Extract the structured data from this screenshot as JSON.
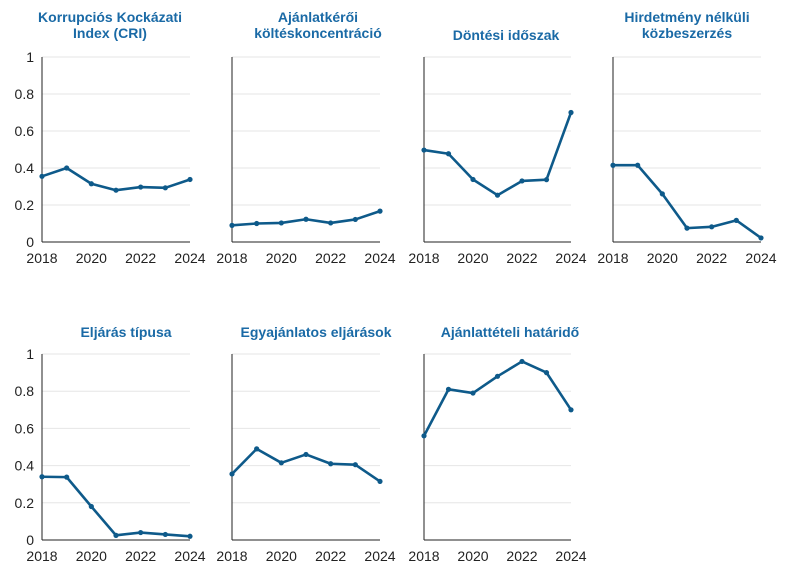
{
  "colors": {
    "line": "#0e5a8a",
    "title": "#1a6aa6",
    "grid": "#e6e6e6",
    "axis": "#222222",
    "tick_text": "#222222"
  },
  "chart_data": [
    {
      "type": "line",
      "title": [
        "Korrupciós Kockázati",
        "Index (CRI)"
      ],
      "x": [
        2018,
        2019,
        2020,
        2021,
        2022,
        2023,
        2024
      ],
      "values": [
        0.355,
        0.4,
        0.315,
        0.28,
        0.297,
        0.293,
        0.338
      ],
      "xticks": [
        "2018",
        "2020",
        "2022",
        "2024"
      ],
      "yticks": [
        "0",
        "0.2",
        "0.4",
        "0.6",
        "0.8",
        "1"
      ],
      "ylim": [
        0,
        1
      ],
      "xlabel": "",
      "ylabel": ""
    },
    {
      "type": "line",
      "title": [
        "Ajánlatkérői",
        "költéskoncentráció"
      ],
      "x": [
        2018,
        2019,
        2020,
        2021,
        2022,
        2023,
        2024
      ],
      "values": [
        0.09,
        0.1,
        0.103,
        0.123,
        0.103,
        0.122,
        0.167
      ],
      "xticks": [
        "2018",
        "2020",
        "2022",
        "2024"
      ],
      "ylim": [
        0,
        1
      ],
      "xlabel": "",
      "ylabel": ""
    },
    {
      "type": "line",
      "title": [
        "Döntési időszak"
      ],
      "x": [
        2018,
        2019,
        2020,
        2021,
        2022,
        2023,
        2024
      ],
      "values": [
        0.497,
        0.477,
        0.338,
        0.253,
        0.33,
        0.337,
        0.7
      ],
      "xticks": [
        "2018",
        "2020",
        "2022",
        "2024"
      ],
      "ylim": [
        0,
        1
      ],
      "xlabel": "",
      "ylabel": ""
    },
    {
      "type": "line",
      "title": [
        "Hirdetmény nélküli",
        "közbeszerzés"
      ],
      "x": [
        2018,
        2019,
        2020,
        2021,
        2022,
        2023,
        2024
      ],
      "values": [
        0.415,
        0.415,
        0.26,
        0.075,
        0.082,
        0.117,
        0.022
      ],
      "xticks": [
        "2018",
        "2020",
        "2022",
        "2024"
      ],
      "ylim": [
        0,
        1
      ],
      "xlabel": "",
      "ylabel": ""
    },
    {
      "type": "line",
      "title": [
        "Eljárás típusa"
      ],
      "x": [
        2018,
        2019,
        2020,
        2021,
        2022,
        2023,
        2024
      ],
      "values": [
        0.34,
        0.338,
        0.18,
        0.025,
        0.04,
        0.03,
        0.02
      ],
      "xticks": [
        "2018",
        "2020",
        "2022",
        "2024"
      ],
      "yticks": [
        "0",
        "0.2",
        "0.4",
        "0.6",
        "0.8",
        "1"
      ],
      "ylim": [
        0,
        1
      ],
      "xlabel": "",
      "ylabel": ""
    },
    {
      "type": "line",
      "title": [
        "Egyajánlatos eljárások"
      ],
      "x": [
        2018,
        2019,
        2020,
        2021,
        2022,
        2023,
        2024
      ],
      "values": [
        0.355,
        0.49,
        0.415,
        0.46,
        0.41,
        0.405,
        0.315
      ],
      "xticks": [
        "2018",
        "2020",
        "2022",
        "2024"
      ],
      "ylim": [
        0,
        1
      ],
      "xlabel": "",
      "ylabel": ""
    },
    {
      "type": "line",
      "title": [
        "Ajánlattételi határidő"
      ],
      "x": [
        2018,
        2019,
        2020,
        2021,
        2022,
        2023,
        2024
      ],
      "values": [
        0.56,
        0.81,
        0.79,
        0.88,
        0.96,
        0.9,
        0.7
      ],
      "xticks": [
        "2018",
        "2020",
        "2022",
        "2024"
      ],
      "ylim": [
        0,
        1
      ],
      "xlabel": "",
      "ylabel": ""
    }
  ]
}
